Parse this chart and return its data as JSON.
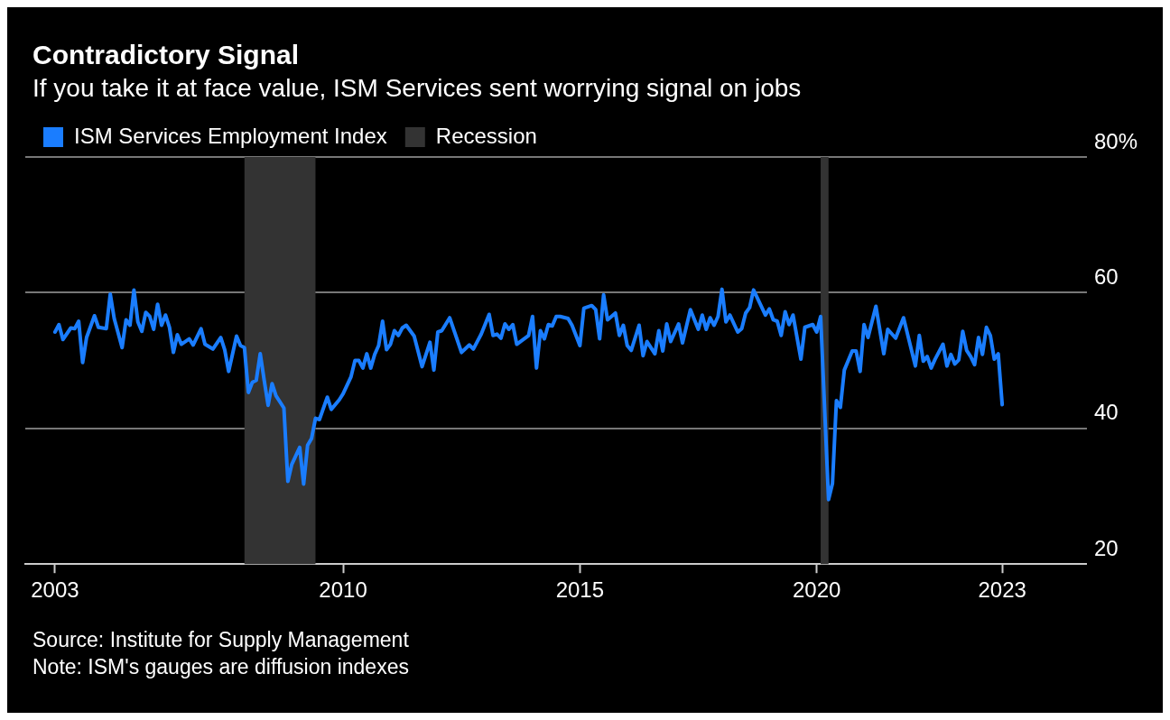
{
  "chart_data": {
    "type": "line",
    "title": "Contradictory Signal",
    "subtitle": "If you take it at face value, ISM Services sent worrying signal on jobs",
    "x": [
      "2003-12",
      "2004-01",
      "2004-02",
      "2004-04",
      "2004-05",
      "2004-06",
      "2004-07",
      "2004-08",
      "2004-10",
      "2004-11",
      "2005-01",
      "2005-02",
      "2005-03",
      "2005-05",
      "2005-06",
      "2005-07",
      "2005-08",
      "2005-09",
      "2005-10",
      "2005-11",
      "2005-12",
      "2006-01",
      "2006-02",
      "2006-03",
      "2006-04",
      "2006-05",
      "2006-06",
      "2006-07",
      "2006-08",
      "2006-10",
      "2006-11",
      "2007-01",
      "2007-02",
      "2007-04",
      "2007-06",
      "2007-07",
      "2007-08",
      "2007-10",
      "2007-11",
      "2007-12",
      "2008-01",
      "2008-02",
      "2008-03",
      "2008-04",
      "2008-05",
      "2008-06",
      "2008-07",
      "2008-08",
      "2008-10",
      "2008-11",
      "2008-12",
      "2009-02",
      "2009-03",
      "2009-04",
      "2009-05",
      "2009-06",
      "2009-07",
      "2009-09",
      "2009-10",
      "2009-12",
      "2010-01",
      "2010-03",
      "2010-04",
      "2010-05",
      "2010-06",
      "2010-07",
      "2010-08",
      "2010-09",
      "2010-10",
      "2010-11",
      "2010-12",
      "2011-01",
      "2011-02",
      "2011-03",
      "2011-04",
      "2011-05",
      "2011-07",
      "2011-09",
      "2011-11",
      "2011-12",
      "2012-01",
      "2012-02",
      "2012-04",
      "2012-07",
      "2012-09",
      "2012-10",
      "2012-12",
      "2013-02",
      "2013-03",
      "2013-04",
      "2013-05",
      "2013-06",
      "2013-07",
      "2013-08",
      "2013-09",
      "2013-12",
      "2014-01",
      "2014-02",
      "2014-03",
      "2014-04",
      "2014-05",
      "2014-06",
      "2014-07",
      "2014-08",
      "2014-10",
      "2014-11",
      "2015-01",
      "2015-02",
      "2015-04",
      "2015-05",
      "2015-06",
      "2015-07",
      "2015-08",
      "2015-10",
      "2015-11",
      "2015-12",
      "2016-01",
      "2016-02",
      "2016-04",
      "2016-05",
      "2016-06",
      "2016-08",
      "2016-09",
      "2016-10",
      "2016-11",
      "2016-12",
      "2017-02",
      "2017-03",
      "2017-05",
      "2017-07",
      "2017-08",
      "2017-09",
      "2017-10",
      "2017-11",
      "2017-12",
      "2018-01",
      "2018-02",
      "2018-03",
      "2018-05",
      "2018-06",
      "2018-07",
      "2018-08",
      "2018-09",
      "2018-12",
      "2019-01",
      "2019-02",
      "2019-03",
      "2019-04",
      "2019-05",
      "2019-06",
      "2019-07",
      "2019-09",
      "2019-10",
      "2019-12",
      "2020-01",
      "2020-02",
      "2020-04",
      "2020-05",
      "2020-06",
      "2020-07",
      "2020-08",
      "2020-10",
      "2020-11",
      "2020-12",
      "2021-01",
      "2021-02",
      "2021-04",
      "2021-06",
      "2021-07",
      "2021-09",
      "2021-11",
      "2022-02",
      "2022-03",
      "2022-04",
      "2022-05",
      "2022-06",
      "2022-07",
      "2022-09",
      "2022-10",
      "2022-11",
      "2022-12",
      "2023-01",
      "2023-02",
      "2023-03",
      "2023-04",
      "2023-05",
      "2023-06",
      "2023-07",
      "2023-08",
      "2023-09",
      "2023-10",
      "2023-11",
      "2023-12"
    ],
    "series": [
      {
        "name": "ISM Services Employment Index",
        "color": "#1a7dff",
        "values": [
          54.2,
          55.3,
          53.1,
          54.8,
          54.7,
          55.8,
          49.7,
          53.4,
          56.6,
          54.9,
          54.7,
          59.8,
          56.2,
          51.9,
          56.0,
          55.2,
          60.4,
          55.7,
          54.3,
          57.1,
          56.5,
          54.6,
          58.3,
          55.2,
          56.7,
          54.9,
          51.2,
          53.8,
          52.4,
          53.2,
          52.3,
          54.7,
          52.4,
          51.7,
          53.4,
          51.6,
          48.4,
          53.6,
          52.2,
          51.9,
          45.3,
          46.8,
          47.1,
          51.0,
          47.1,
          43.4,
          46.6,
          44.8,
          43.0,
          32.2,
          34.7,
          37.2,
          31.8,
          37.5,
          38.5,
          41.5,
          41.3,
          44.6,
          42.8,
          44.2,
          45.1,
          47.6,
          50.0,
          50.0,
          48.9,
          51.0,
          48.9,
          50.9,
          52.2,
          55.8,
          51.6,
          52.4,
          54.4,
          53.7,
          54.8,
          55.2,
          53.6,
          49.1,
          52.7,
          48.6,
          54.2,
          54.4,
          56.3,
          51.2,
          52.3,
          51.7,
          53.9,
          56.8,
          53.7,
          53.9,
          53.3,
          55.4,
          54.6,
          55.3,
          52.4,
          53.7,
          56.5,
          48.9,
          54.4,
          53.2,
          55.3,
          55.1,
          56.5,
          56.5,
          56.2,
          55.2,
          52.2,
          57.7,
          58.1,
          57.5,
          53.2,
          59.7,
          56.0,
          57.0,
          53.7,
          55.2,
          52.2,
          51.5,
          55.2,
          50.7,
          52.8,
          51.0,
          54.4,
          51.4,
          55.4,
          52.8,
          55.4,
          52.6,
          57.5,
          54.6,
          56.7,
          54.6,
          56.3,
          55.2,
          56.5,
          60.5,
          55.7,
          56.7,
          54.2,
          54.7,
          57.0,
          57.8,
          60.4,
          56.7,
          57.6,
          56.0,
          55.8,
          53.7,
          57.2,
          55.3,
          56.7,
          50.2,
          54.9,
          55.3,
          54.2,
          56.5,
          29.5,
          31.9,
          44.1,
          43.1,
          48.6,
          51.4,
          51.4,
          48.4,
          55.3,
          53.4,
          58.0,
          51.0,
          54.6,
          53.3,
          56.3,
          49.2,
          53.7,
          49.9,
          50.6,
          48.9,
          50.2,
          52.4,
          49.2,
          50.9,
          49.5,
          50.1,
          54.3,
          51.5,
          50.6,
          49.4,
          53.4,
          50.9,
          54.9,
          53.7,
          50.2,
          51.0,
          43.5
        ]
      }
    ],
    "xlim": [
      "2003-04-15",
      "2025-09-15"
    ],
    "xticks": [
      {
        "value": "2003-12",
        "label": "2003"
      },
      "2010",
      "2015",
      "2020",
      {
        "value": "2023-12",
        "label": "2023"
      }
    ],
    "ylim": [
      20,
      80
    ],
    "yticks": [
      20,
      40,
      60,
      {
        "value": 80,
        "label": "80%"
      }
    ],
    "bands": [
      {
        "axis": "x",
        "from": "2007-12",
        "to": "2009-06",
        "label": "Recession",
        "color": "#333333"
      },
      {
        "axis": "x",
        "from": "2020-02",
        "to": "2020-04",
        "color": "#333333"
      }
    ],
    "grid": "y",
    "legend": "top left",
    "marker": "none",
    "line_style": "solid",
    "annotations": [
      "Source: Institute for Supply Management",
      "Note: ISM's gauges are diffusion indexes"
    ]
  }
}
